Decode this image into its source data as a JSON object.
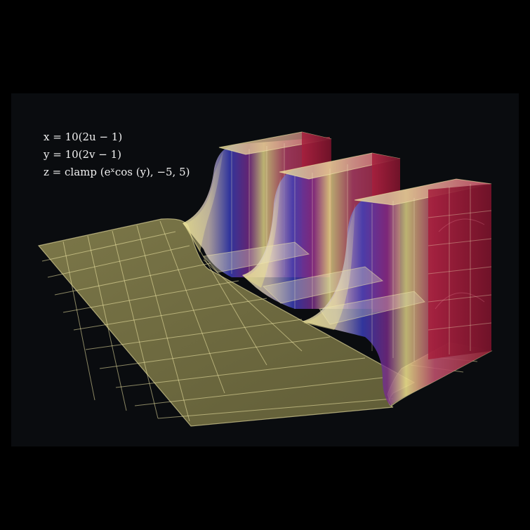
{
  "equations": {
    "x": "x = 10(2u − 1)",
    "y": "y = 10(2v − 1)",
    "z": "z = clamp (eˣcos (y), −5, 5)"
  },
  "colors": {
    "background": "#000000",
    "panel": "#0a0c0f",
    "plane": "#e6dc82",
    "grid": "#f3eaa8",
    "wall": "#b01c3a",
    "sheen_blue": "#3a3fbf",
    "sheen_purple": "#7a2a8a"
  }
}
